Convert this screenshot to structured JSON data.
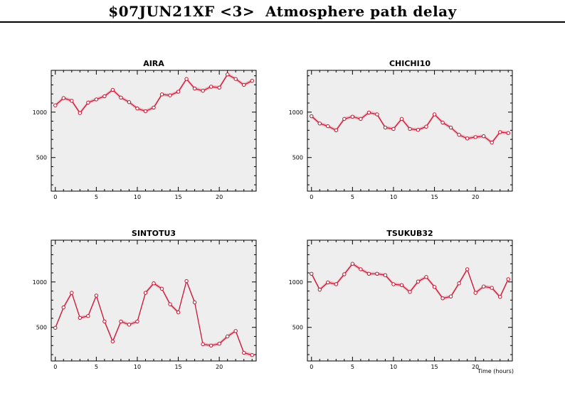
{
  "page": {
    "title": "$07JUN21XF <3>  Atmosphere path delay"
  },
  "chart_data": [
    {
      "type": "line",
      "title": "AIRA",
      "xlabel": "",
      "ylabel": "",
      "xlim": [
        -0.5,
        24.5
      ],
      "ylim": [
        130,
        1460
      ],
      "xticks": [
        0,
        5,
        10,
        15,
        20
      ],
      "yticks": [
        500,
        1000
      ],
      "x": [
        0,
        1,
        2,
        3,
        4,
        5,
        6,
        7,
        8,
        9,
        10,
        11,
        12,
        13,
        14,
        15,
        16,
        17,
        18,
        19,
        20,
        21,
        22,
        23,
        24
      ],
      "values": [
        1075,
        1155,
        1125,
        990,
        1105,
        1140,
        1175,
        1245,
        1160,
        1110,
        1040,
        1010,
        1050,
        1195,
        1185,
        1225,
        1365,
        1260,
        1235,
        1280,
        1270,
        1415,
        1365,
        1300,
        1345
      ]
    },
    {
      "type": "line",
      "title": "CHICHI10",
      "xlabel": "",
      "ylabel": "",
      "xlim": [
        -0.5,
        24.5
      ],
      "ylim": [
        130,
        1460
      ],
      "xticks": [
        0,
        5,
        10,
        15,
        20
      ],
      "yticks": [
        500,
        1000
      ],
      "x": [
        0,
        1,
        2,
        3,
        4,
        5,
        6,
        7,
        8,
        9,
        10,
        11,
        12,
        13,
        14,
        15,
        16,
        17,
        18,
        19,
        20,
        21,
        22,
        23,
        24
      ],
      "values": [
        955,
        875,
        845,
        800,
        925,
        950,
        925,
        995,
        975,
        830,
        815,
        925,
        815,
        805,
        840,
        975,
        885,
        830,
        750,
        710,
        725,
        735,
        665,
        780,
        770
      ]
    },
    {
      "type": "line",
      "title": "SINTOTU3",
      "xlabel": "",
      "ylabel": "",
      "xlim": [
        -0.5,
        24.5
      ],
      "ylim": [
        130,
        1460
      ],
      "xticks": [
        0,
        5,
        10,
        15,
        20
      ],
      "yticks": [
        500,
        1000
      ],
      "x": [
        0,
        1,
        2,
        3,
        4,
        5,
        6,
        7,
        8,
        9,
        10,
        11,
        12,
        13,
        14,
        15,
        16,
        17,
        18,
        19,
        20,
        21,
        22,
        23,
        24
      ],
      "values": [
        495,
        720,
        880,
        605,
        625,
        850,
        565,
        345,
        565,
        530,
        565,
        880,
        985,
        925,
        755,
        665,
        1010,
        775,
        315,
        300,
        320,
        400,
        460,
        220,
        195
      ]
    },
    {
      "type": "line",
      "title": "TSUKUB32",
      "xlabel": "Time (hours)",
      "ylabel": "",
      "xlim": [
        -0.5,
        24.5
      ],
      "ylim": [
        130,
        1460
      ],
      "xticks": [
        0,
        5,
        10,
        15,
        20
      ],
      "yticks": [
        500,
        1000
      ],
      "x": [
        0,
        1,
        2,
        3,
        4,
        5,
        6,
        7,
        8,
        9,
        10,
        11,
        12,
        13,
        14,
        15,
        16,
        17,
        18,
        19,
        20,
        21,
        22,
        23,
        24
      ],
      "values": [
        1090,
        915,
        995,
        975,
        1085,
        1200,
        1140,
        1090,
        1090,
        1075,
        975,
        965,
        890,
        1005,
        1055,
        945,
        820,
        840,
        985,
        1140,
        880,
        950,
        935,
        835,
        1030
      ]
    }
  ],
  "colors": {
    "plot_background": "#eeeeee",
    "line": "#c8102e",
    "band": "#e8b4be",
    "marker_fill": "#ffffff",
    "axis": "#000000"
  }
}
